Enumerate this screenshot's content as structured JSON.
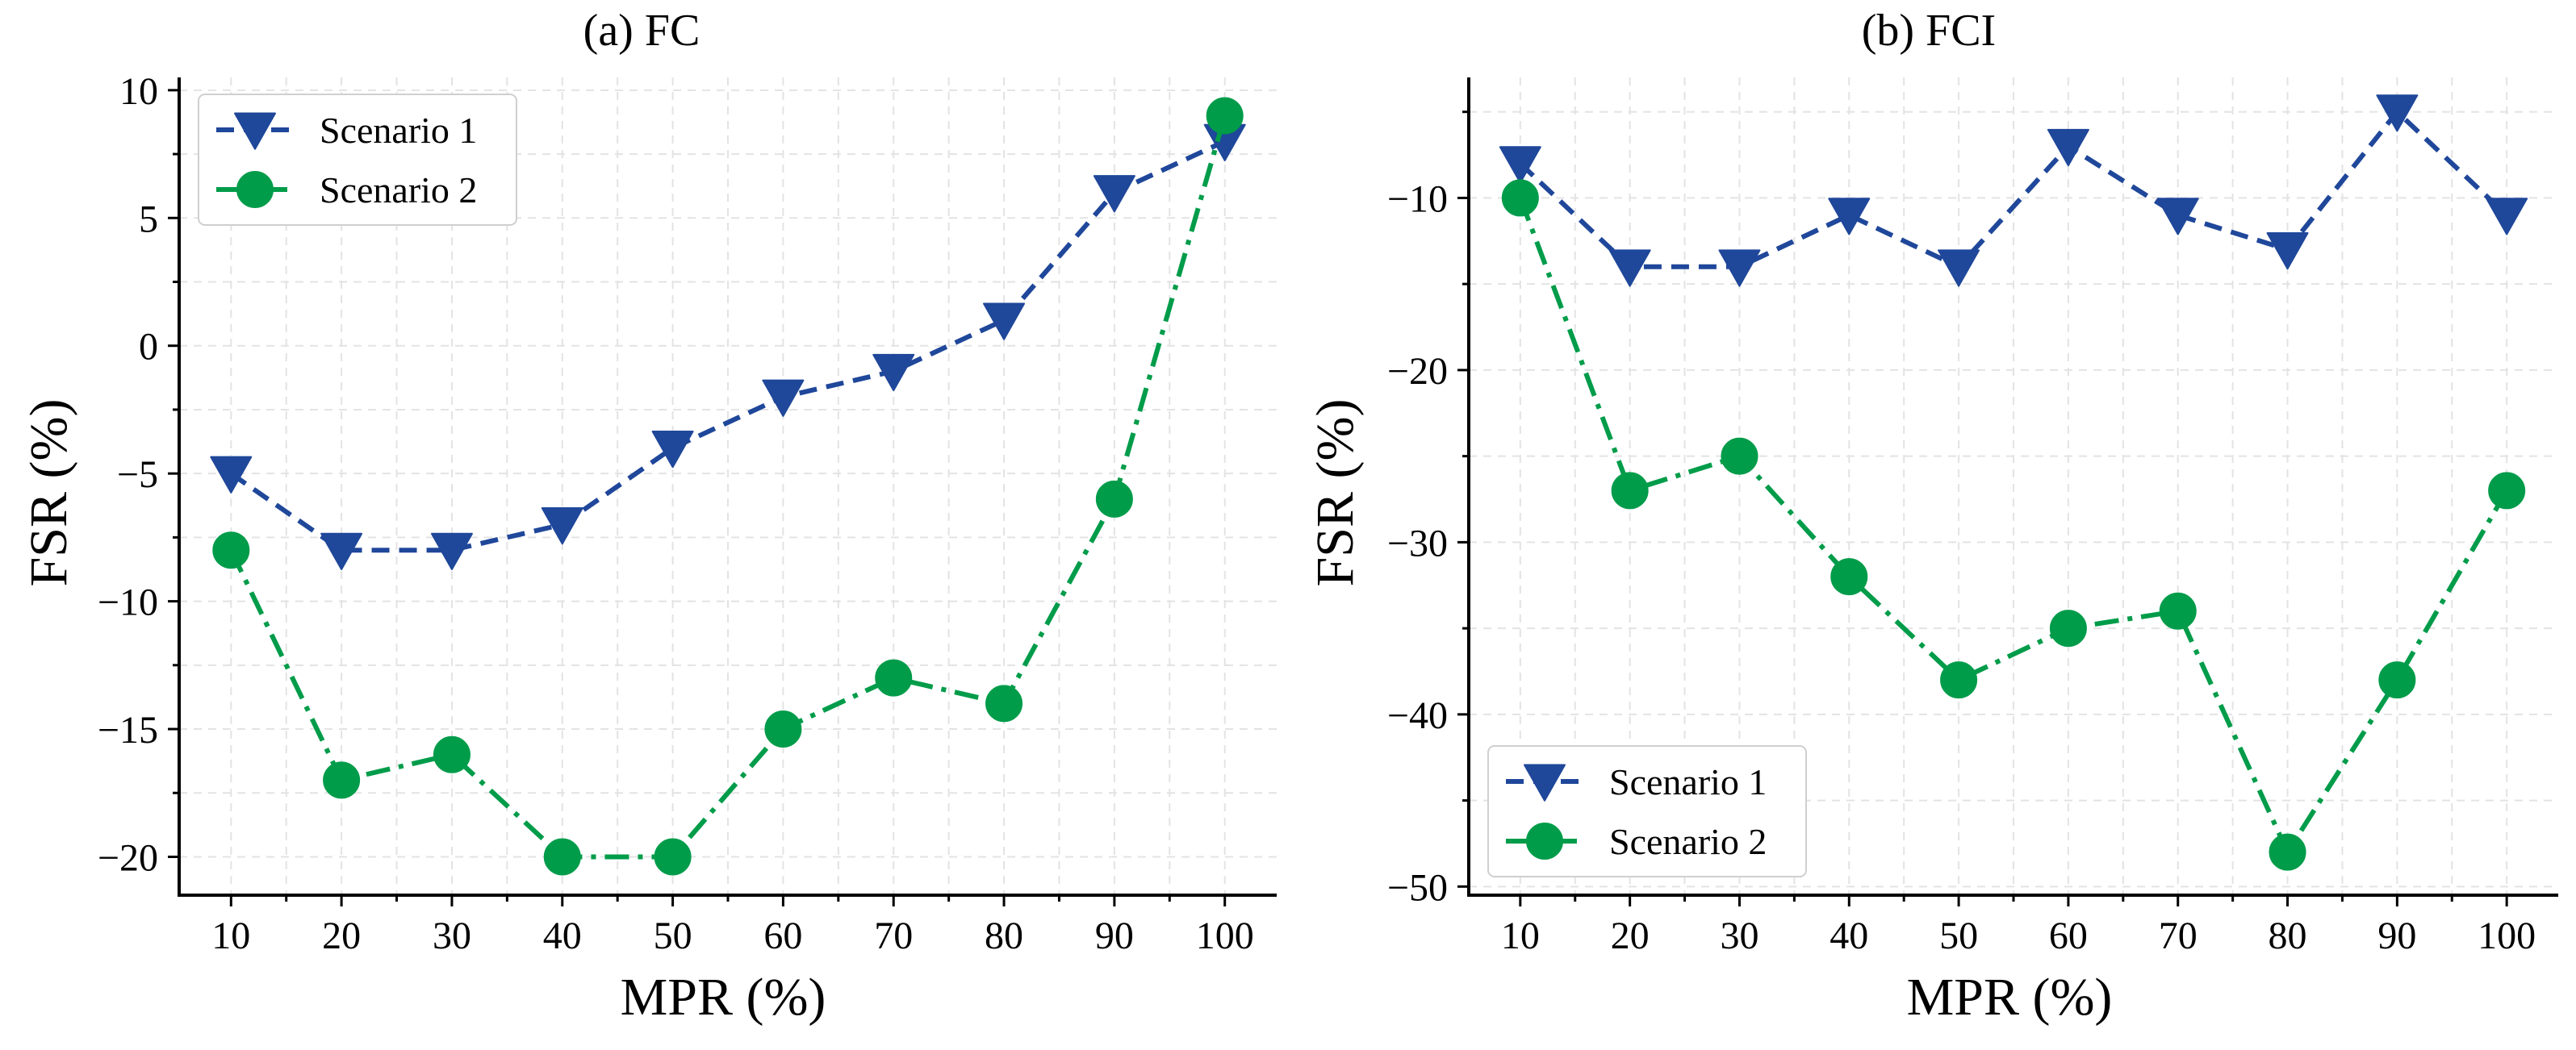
{
  "figure_colors": {
    "series1": "#1f479a",
    "series2": "#009c4a"
  },
  "chart_data": [
    {
      "id": "fc",
      "type": "line",
      "title": "(a) FC",
      "xlabel": "MPR (%)",
      "ylabel": "FSR (%)",
      "x": [
        10,
        20,
        30,
        40,
        50,
        60,
        70,
        80,
        90,
        100
      ],
      "xticks": [
        "10",
        "20",
        "30",
        "40",
        "50",
        "60",
        "70",
        "80",
        "90",
        "100"
      ],
      "ylim": [
        -21.5,
        10.5
      ],
      "yticks": [
        -20,
        -15,
        -10,
        -5,
        0,
        5,
        10
      ],
      "ytick_labels": [
        "−20",
        "−15",
        "−10",
        "−5",
        "0",
        "5",
        "10"
      ],
      "grid": true,
      "legend_position": "top-left",
      "series": [
        {
          "name": "Scenario 1",
          "marker": "triangle-down",
          "line_style": "dashed",
          "color": "#1f479a",
          "values": [
            -5,
            -8,
            -8,
            -7,
            -4,
            -2,
            -1,
            1,
            6,
            8
          ]
        },
        {
          "name": "Scenario 2",
          "marker": "circle",
          "line_style": "dash-dot",
          "color": "#009c4a",
          "values": [
            -8,
            -17,
            -16,
            -20,
            -20,
            -15,
            -13,
            -14,
            -6,
            9
          ]
        }
      ]
    },
    {
      "id": "fci",
      "type": "line",
      "title": "(b) FCI",
      "xlabel": "MPR (%)",
      "ylabel": "FSR (%)",
      "x": [
        10,
        20,
        30,
        40,
        50,
        60,
        70,
        80,
        90,
        100
      ],
      "xticks": [
        "10",
        "20",
        "30",
        "40",
        "50",
        "60",
        "70",
        "80",
        "90",
        "100"
      ],
      "ylim": [
        -50.5,
        -3
      ],
      "yticks": [
        -50,
        -40,
        -30,
        -20,
        -10
      ],
      "ytick_labels": [
        "−50",
        "−40",
        "−30",
        "−20",
        "−10"
      ],
      "grid": true,
      "legend_position": "bottom-left",
      "series": [
        {
          "name": "Scenario 1",
          "marker": "triangle-down",
          "line_style": "dashed",
          "color": "#1f479a",
          "values": [
            -8,
            -14,
            -14,
            -11,
            -14,
            -7,
            -11,
            -13,
            -5,
            -11
          ]
        },
        {
          "name": "Scenario 2",
          "marker": "circle",
          "line_style": "dash-dot",
          "color": "#009c4a",
          "values": [
            -10,
            -27,
            -25,
            -32,
            -38,
            -35,
            -34,
            -48,
            -38,
            -27
          ]
        }
      ]
    }
  ]
}
